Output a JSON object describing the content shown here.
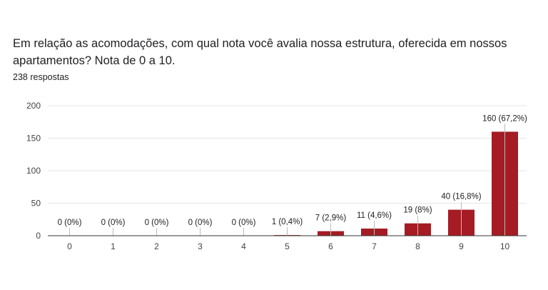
{
  "header": {
    "question": "Em relação as acomodações, com qual nota você avalia nossa estrutura, oferecida em nossos apartamentos?  Nota de 0 a 10.",
    "response_count": "238 respostas"
  },
  "colors": {
    "bar": "#a51c24",
    "grid": "#e6e6e6",
    "axis": "#333333",
    "label_line": "#bbbbbb"
  },
  "chart_data": {
    "type": "bar",
    "categories": [
      "0",
      "1",
      "2",
      "3",
      "4",
      "5",
      "6",
      "7",
      "8",
      "9",
      "10"
    ],
    "values": [
      0,
      0,
      0,
      0,
      0,
      1,
      7,
      11,
      19,
      40,
      160
    ],
    "data_labels": [
      "0 (0%)",
      "0 (0%)",
      "0 (0%)",
      "0 (0%)",
      "0 (0%)",
      "1 (0,4%)",
      "7 (2,9%)",
      "11 (4,6%)",
      "19 (8%)",
      "40 (16,8%)",
      "160 (67,2%)"
    ],
    "yticks": [
      0,
      50,
      100,
      150,
      200
    ],
    "ylim": [
      0,
      200
    ],
    "grid": true,
    "legend": "none"
  }
}
